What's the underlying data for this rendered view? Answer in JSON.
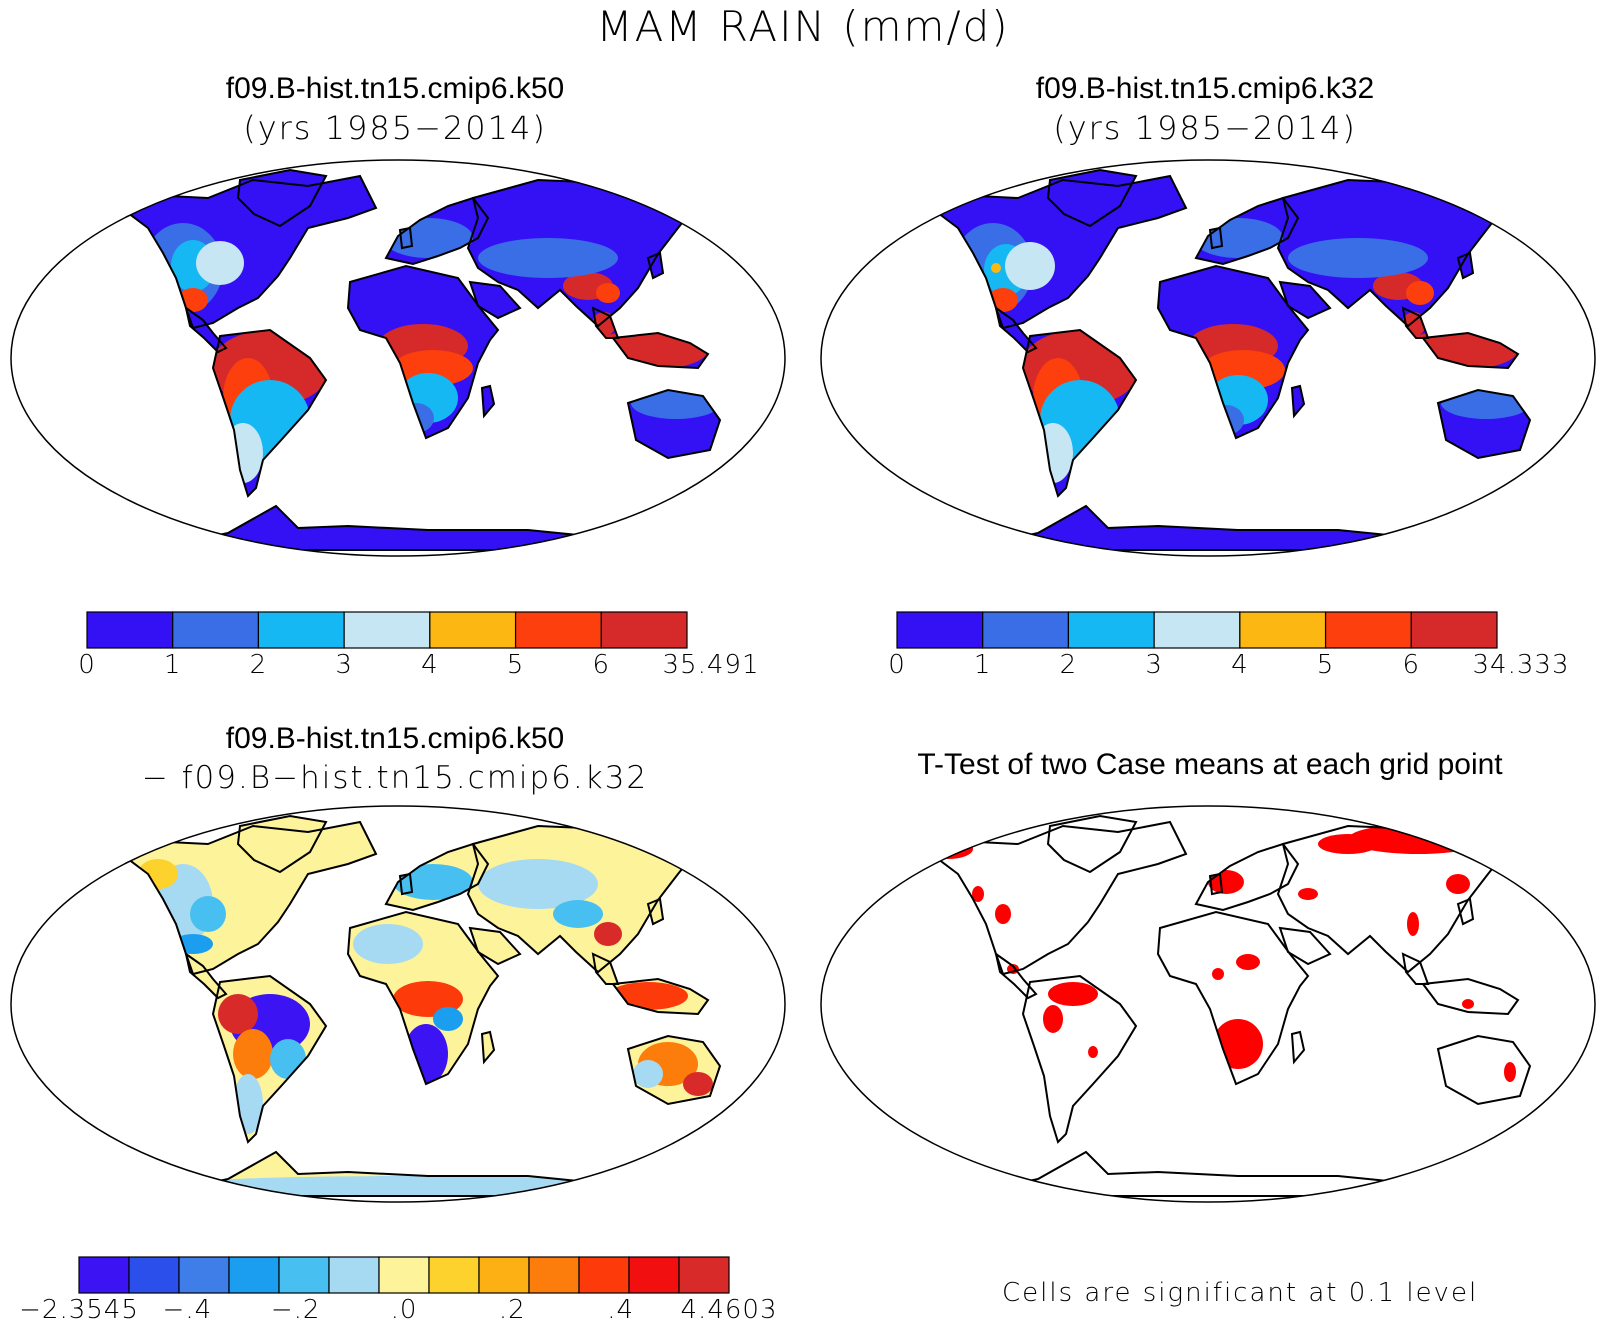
{
  "figure": {
    "main_title": "MAM RAIN (mm/d)"
  },
  "panels": {
    "top_left": {
      "case": "f09.B-hist.tn15.cmip6.k50",
      "years": "(yrs 1985−2014)",
      "colorbar": {
        "colors": [
          "#3311f4",
          "#3a6ee6",
          "#15b8f2",
          "#c6e6f4",
          "#fdb712",
          "#fc3f0c",
          "#d62a2a"
        ],
        "tick_labels": [
          "0",
          "1",
          "2",
          "3",
          "4",
          "5",
          "6",
          "35.491"
        ]
      }
    },
    "top_right": {
      "case": "f09.B-hist.tn15.cmip6.k32",
      "years": "(yrs 1985−2014)",
      "colorbar": {
        "colors": [
          "#3311f4",
          "#3a6ee6",
          "#15b8f2",
          "#c6e6f4",
          "#fdb712",
          "#fc3f0c",
          "#d62a2a"
        ],
        "tick_labels": [
          "0",
          "1",
          "2",
          "3",
          "4",
          "5",
          "6",
          "34.333"
        ]
      }
    },
    "bottom_left": {
      "case": "f09.B-hist.tn15.cmip6.k50",
      "minus_case": "− f09.B−hist.tn15.cmip6.k32",
      "colorbar": {
        "colors": [
          "#3c13f2",
          "#2a4fea",
          "#3f7de8",
          "#1c9ef0",
          "#47bff0",
          "#a6d9f2",
          "#fdf39a",
          "#fdd22c",
          "#fcb014",
          "#fc7d0c",
          "#fc3a0a",
          "#f20f0f",
          "#d92a2a"
        ],
        "tick_labels": [
          "−2.3545",
          "−.4",
          "−.2",
          ".0",
          ".2",
          ".4",
          "4.4603"
        ]
      }
    },
    "bottom_right": {
      "title": "T-Test of two Case means at each grid point",
      "note": "Cells are significant at 0.1 level",
      "significant_color": "#ff0000"
    }
  }
}
